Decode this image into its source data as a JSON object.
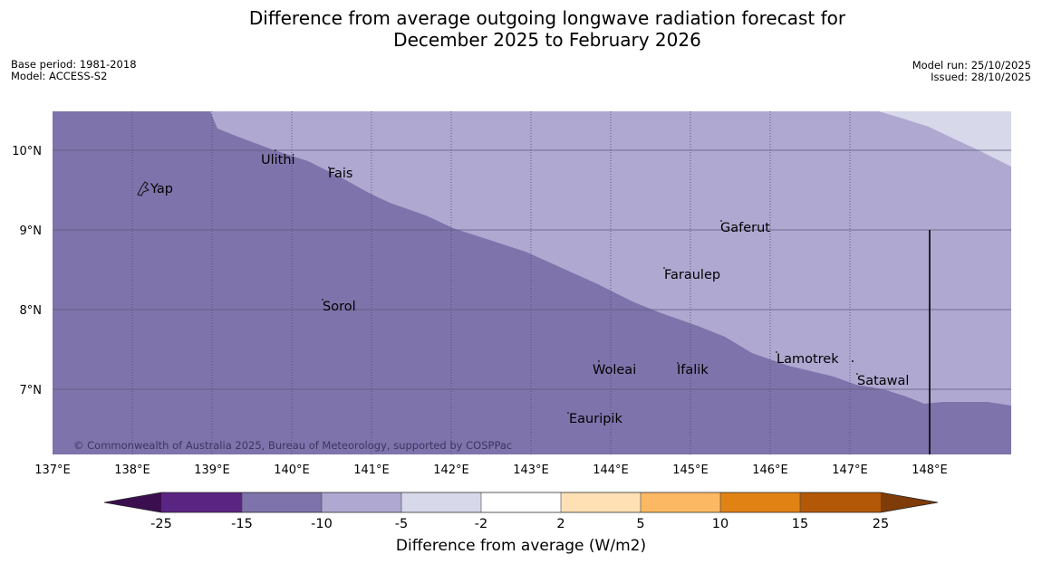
{
  "title": {
    "line1": "Difference from average outgoing longwave radiation forecast for",
    "line2": "December 2025 to February 2026"
  },
  "meta": {
    "base_period": "Base period: 1981-2018",
    "model": "Model: ACCESS-S2",
    "model_run": "Model run: 25/10/2025",
    "issued": "Issued: 28/10/2025"
  },
  "map": {
    "lon_labels": [
      "137°E",
      "138°E",
      "139°E",
      "140°E",
      "141°E",
      "142°E",
      "143°E",
      "144°E",
      "145°E",
      "146°E",
      "147°E",
      "148°E"
    ],
    "lat_labels": [
      "10°N",
      "9°N",
      "8°N",
      "7°N"
    ],
    "places": [
      "Yap",
      "Ulithi",
      "Fais",
      "Gaferut",
      "Faraulep",
      "Sorol",
      "Lamotrek",
      "Woleai",
      "Ifalik",
      "Satawal",
      "Eauripik"
    ],
    "copyright": "© Commonwealth of Australia 2025, Bureau of Meteorology, supported by COSPPac"
  },
  "colorbar": {
    "ticks": [
      "-25",
      "-15",
      "-10",
      "-5",
      "-2",
      "2",
      "5",
      "10",
      "15",
      "25"
    ],
    "colors": {
      "below": "#3b0f4f",
      "c1": "#5a2483",
      "c2": "#7f73ab",
      "c3": "#afa8d1",
      "c4": "#d8d8eb",
      "c5": "#ffffff",
      "c6": "#fee0b4",
      "c7": "#fdb863",
      "c8": "#e08214",
      "c9": "#b35806",
      "above": "#7f3b08"
    },
    "title": "Difference from average (W/m2)"
  }
}
